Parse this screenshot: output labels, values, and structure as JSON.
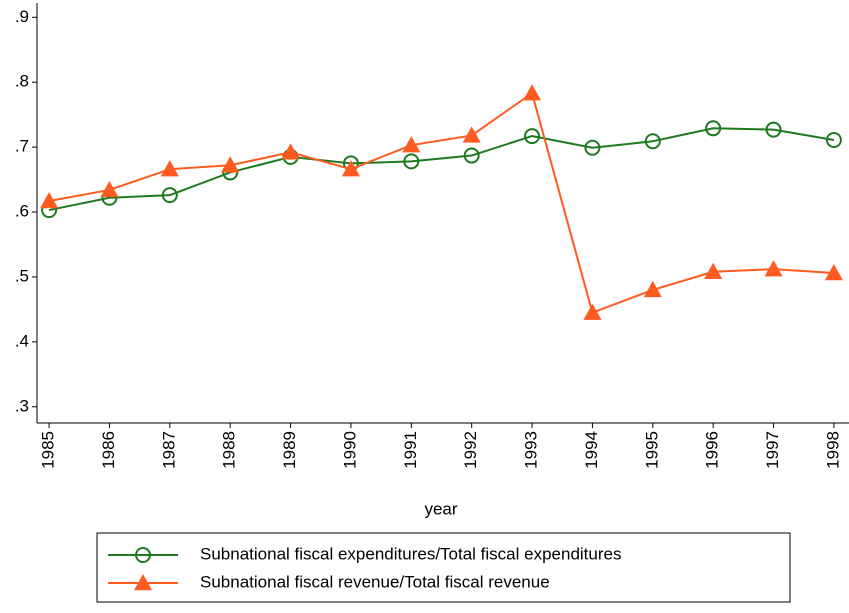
{
  "chart_data": {
    "type": "line",
    "xlabel": "year",
    "x": [
      1985,
      1986,
      1987,
      1988,
      1989,
      1990,
      1991,
      1992,
      1993,
      1994,
      1995,
      1996,
      1997,
      1998
    ],
    "xlim": [
      1984.8,
      1998.25
    ],
    "xticks": [
      1985,
      1986,
      1987,
      1988,
      1989,
      1990,
      1991,
      1992,
      1993,
      1994,
      1995,
      1996,
      1997,
      1998
    ],
    "ylim": [
      0.275,
      0.922
    ],
    "yticks": [
      {
        "value": 0.3,
        "label": ".3"
      },
      {
        "value": 0.4,
        "label": ".4"
      },
      {
        "value": 0.5,
        "label": ".5"
      },
      {
        "value": 0.6,
        "label": ".6"
      },
      {
        "value": 0.7,
        "label": ".7"
      },
      {
        "value": 0.8,
        "label": ".8"
      },
      {
        "value": 0.9,
        "label": ".9"
      }
    ],
    "legend": "bottom",
    "series": [
      {
        "name": "Subnational fiscal expenditures/Total fiscal expenditures",
        "color": "#1f7a1f",
        "marker": "circle",
        "values": [
          0.603,
          0.622,
          0.626,
          0.661,
          0.685,
          0.675,
          0.678,
          0.687,
          0.717,
          0.699,
          0.709,
          0.729,
          0.727,
          0.711
        ]
      },
      {
        "name": "Subnational fiscal revenue/Total fiscal revenue",
        "color": "#ff5a1f",
        "marker": "triangle",
        "values": [
          0.617,
          0.634,
          0.666,
          0.672,
          0.692,
          0.666,
          0.703,
          0.718,
          0.783,
          0.445,
          0.48,
          0.508,
          0.512,
          0.506
        ]
      }
    ]
  }
}
